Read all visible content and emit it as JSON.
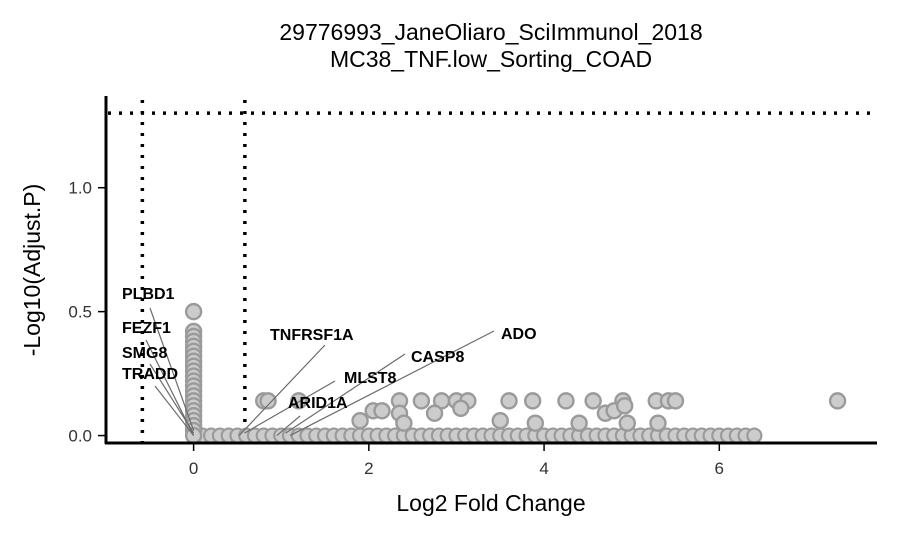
{
  "chart_data": {
    "type": "scatter",
    "title": "29776993_JaneOliaro_SciImmunol_2018",
    "subtitle": "MC38_TNF.low_Sorting_COAD",
    "xlabel": "Log2 Fold Change",
    "ylabel": "-Log10(Adjust.P)",
    "xlim": [
      -1.0,
      7.8
    ],
    "ylim": [
      -0.03,
      1.37
    ],
    "x_ticks": [
      0,
      2,
      4,
      6
    ],
    "y_ticks": [
      0.0,
      0.5,
      1.0
    ],
    "y_tick_labels": [
      "0.0",
      "0.5",
      "1.0"
    ],
    "grid": false,
    "thresholds": {
      "vertical_lines": [
        -0.585,
        0.585
      ],
      "horizontal_line": 1.301
    },
    "colors": {
      "point_fill": "#cccccc",
      "point_stroke": "#9a9a9a",
      "label_line": "#6b6b6b"
    },
    "points": [
      [
        0.0,
        0.5
      ],
      [
        0.0,
        0.42
      ],
      [
        0.0,
        0.4
      ],
      [
        0.0,
        0.38
      ],
      [
        0.0,
        0.36
      ],
      [
        0.0,
        0.34
      ],
      [
        0.0,
        0.32
      ],
      [
        0.0,
        0.3
      ],
      [
        0.0,
        0.28
      ],
      [
        0.0,
        0.26
      ],
      [
        0.0,
        0.24
      ],
      [
        0.0,
        0.22
      ],
      [
        0.0,
        0.2
      ],
      [
        0.0,
        0.18
      ],
      [
        0.0,
        0.16
      ],
      [
        0.0,
        0.14
      ],
      [
        0.0,
        0.12
      ],
      [
        0.0,
        0.1
      ],
      [
        0.0,
        0.08
      ],
      [
        0.0,
        0.06
      ],
      [
        0.0,
        0.04
      ],
      [
        0.0,
        0.02
      ],
      [
        0.0,
        0.0
      ],
      [
        0.8,
        0.14
      ],
      [
        0.85,
        0.14
      ],
      [
        1.2,
        0.14
      ],
      [
        2.35,
        0.14
      ],
      [
        2.6,
        0.14
      ],
      [
        2.83,
        0.14
      ],
      [
        3.0,
        0.14
      ],
      [
        3.13,
        0.14
      ],
      [
        3.6,
        0.14
      ],
      [
        3.87,
        0.14
      ],
      [
        4.25,
        0.14
      ],
      [
        4.56,
        0.14
      ],
      [
        4.9,
        0.14
      ],
      [
        5.28,
        0.14
      ],
      [
        5.42,
        0.14
      ],
      [
        5.5,
        0.14
      ],
      [
        7.35,
        0.14
      ],
      [
        2.05,
        0.1
      ],
      [
        2.15,
        0.1
      ],
      [
        2.35,
        0.09
      ],
      [
        2.75,
        0.09
      ],
      [
        3.05,
        0.11
      ],
      [
        4.7,
        0.09
      ],
      [
        4.8,
        0.1
      ],
      [
        4.92,
        0.12
      ],
      [
        1.9,
        0.06
      ],
      [
        2.4,
        0.05
      ],
      [
        3.5,
        0.06
      ],
      [
        3.9,
        0.05
      ],
      [
        4.4,
        0.05
      ],
      [
        4.95,
        0.05
      ],
      [
        5.3,
        0.05
      ]
    ],
    "dense_band": {
      "x_start": 0.0,
      "x_end": 6.45,
      "y": 0.0
    },
    "labels": [
      {
        "gene": "PLBD1",
        "point": [
          0.0,
          0.02
        ]
      },
      {
        "gene": "FEZF1",
        "point": [
          0.0,
          0.0
        ]
      },
      {
        "gene": "SMG8",
        "point": [
          0.0,
          0.01
        ]
      },
      {
        "gene": "TRADD",
        "point": [
          0.0,
          0.0
        ]
      },
      {
        "gene": "TNFRSF1A",
        "point": [
          0.52,
          0.0
        ]
      },
      {
        "gene": "ARID1A",
        "point": [
          0.95,
          0.0
        ]
      },
      {
        "gene": "MLST8",
        "point": [
          0.58,
          0.01
        ]
      },
      {
        "gene": "CASP8",
        "point": [
          1.05,
          0.01
        ]
      },
      {
        "gene": "ADO",
        "point": [
          1.1,
          0.0
        ]
      }
    ]
  }
}
